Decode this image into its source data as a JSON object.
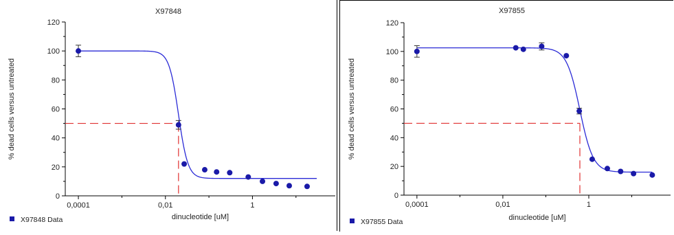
{
  "chart_data": [
    {
      "type": "scatter",
      "title": "X97848",
      "xlabel": "dinucleotide [uM]",
      "ylabel": "% dead cells versus untreated",
      "x_scale": "log",
      "x_ticks": [
        "0,0001",
        "0,01",
        "1"
      ],
      "y_ticks": [
        "0",
        "20",
        "40",
        "60",
        "80",
        "100",
        "120"
      ],
      "ylim": [
        0,
        120
      ],
      "grid": false,
      "legend": "bottom-left",
      "series": [
        {
          "name": "X97848 Data",
          "points": [
            {
              "x": 0.0001,
              "y": 100,
              "err": 4
            },
            {
              "x": 0.02,
              "y": 49,
              "err": 3
            },
            {
              "x": 0.027,
              "y": 22
            },
            {
              "x": 0.08,
              "y": 18
            },
            {
              "x": 0.15,
              "y": 16.5
            },
            {
              "x": 0.3,
              "y": 16
            },
            {
              "x": 0.8,
              "y": 13
            },
            {
              "x": 1.7,
              "y": 10
            },
            {
              "x": 3.5,
              "y": 8.5
            },
            {
              "x": 7,
              "y": 7
            },
            {
              "x": 18,
              "y": 6.5
            }
          ]
        }
      ],
      "fit": {
        "top": 100,
        "bottom": 12,
        "ec50": 0.02,
        "hill": 4
      },
      "ec50_marker": {
        "x": 0.02,
        "y": 50
      }
    },
    {
      "type": "scatter",
      "title": "X97855",
      "xlabel": "dinucleotide [uM]",
      "ylabel": "% dead cells versus untreated",
      "x_scale": "log",
      "x_ticks": [
        "0,0001",
        "0,01",
        "1"
      ],
      "y_ticks": [
        "0",
        "20",
        "40",
        "60",
        "80",
        "100",
        "120"
      ],
      "ylim": [
        0,
        120
      ],
      "grid": false,
      "legend": "bottom-left",
      "series": [
        {
          "name": "X97855 Data",
          "points": [
            {
              "x": 0.0001,
              "y": 100,
              "err": 4
            },
            {
              "x": 0.02,
              "y": 102.5
            },
            {
              "x": 0.03,
              "y": 101.5
            },
            {
              "x": 0.08,
              "y": 103.5,
              "err": 2.5
            },
            {
              "x": 0.3,
              "y": 97
            },
            {
              "x": 0.6,
              "y": 58.5,
              "err": 2
            },
            {
              "x": 1.2,
              "y": 25
            },
            {
              "x": 2.7,
              "y": 18.5
            },
            {
              "x": 5.5,
              "y": 16.5
            },
            {
              "x": 11,
              "y": 15
            },
            {
              "x": 30,
              "y": 14
            }
          ]
        }
      ],
      "fit": {
        "top": 102.5,
        "bottom": 16,
        "ec50": 0.62,
        "hill": 2.8
      },
      "ec50_marker": {
        "x": 0.62,
        "y": 50
      }
    }
  ],
  "colors": {
    "data": "#1a1aa8",
    "fit": "#2a2ad6",
    "ec50": "#e03030",
    "axis": "#000000"
  }
}
